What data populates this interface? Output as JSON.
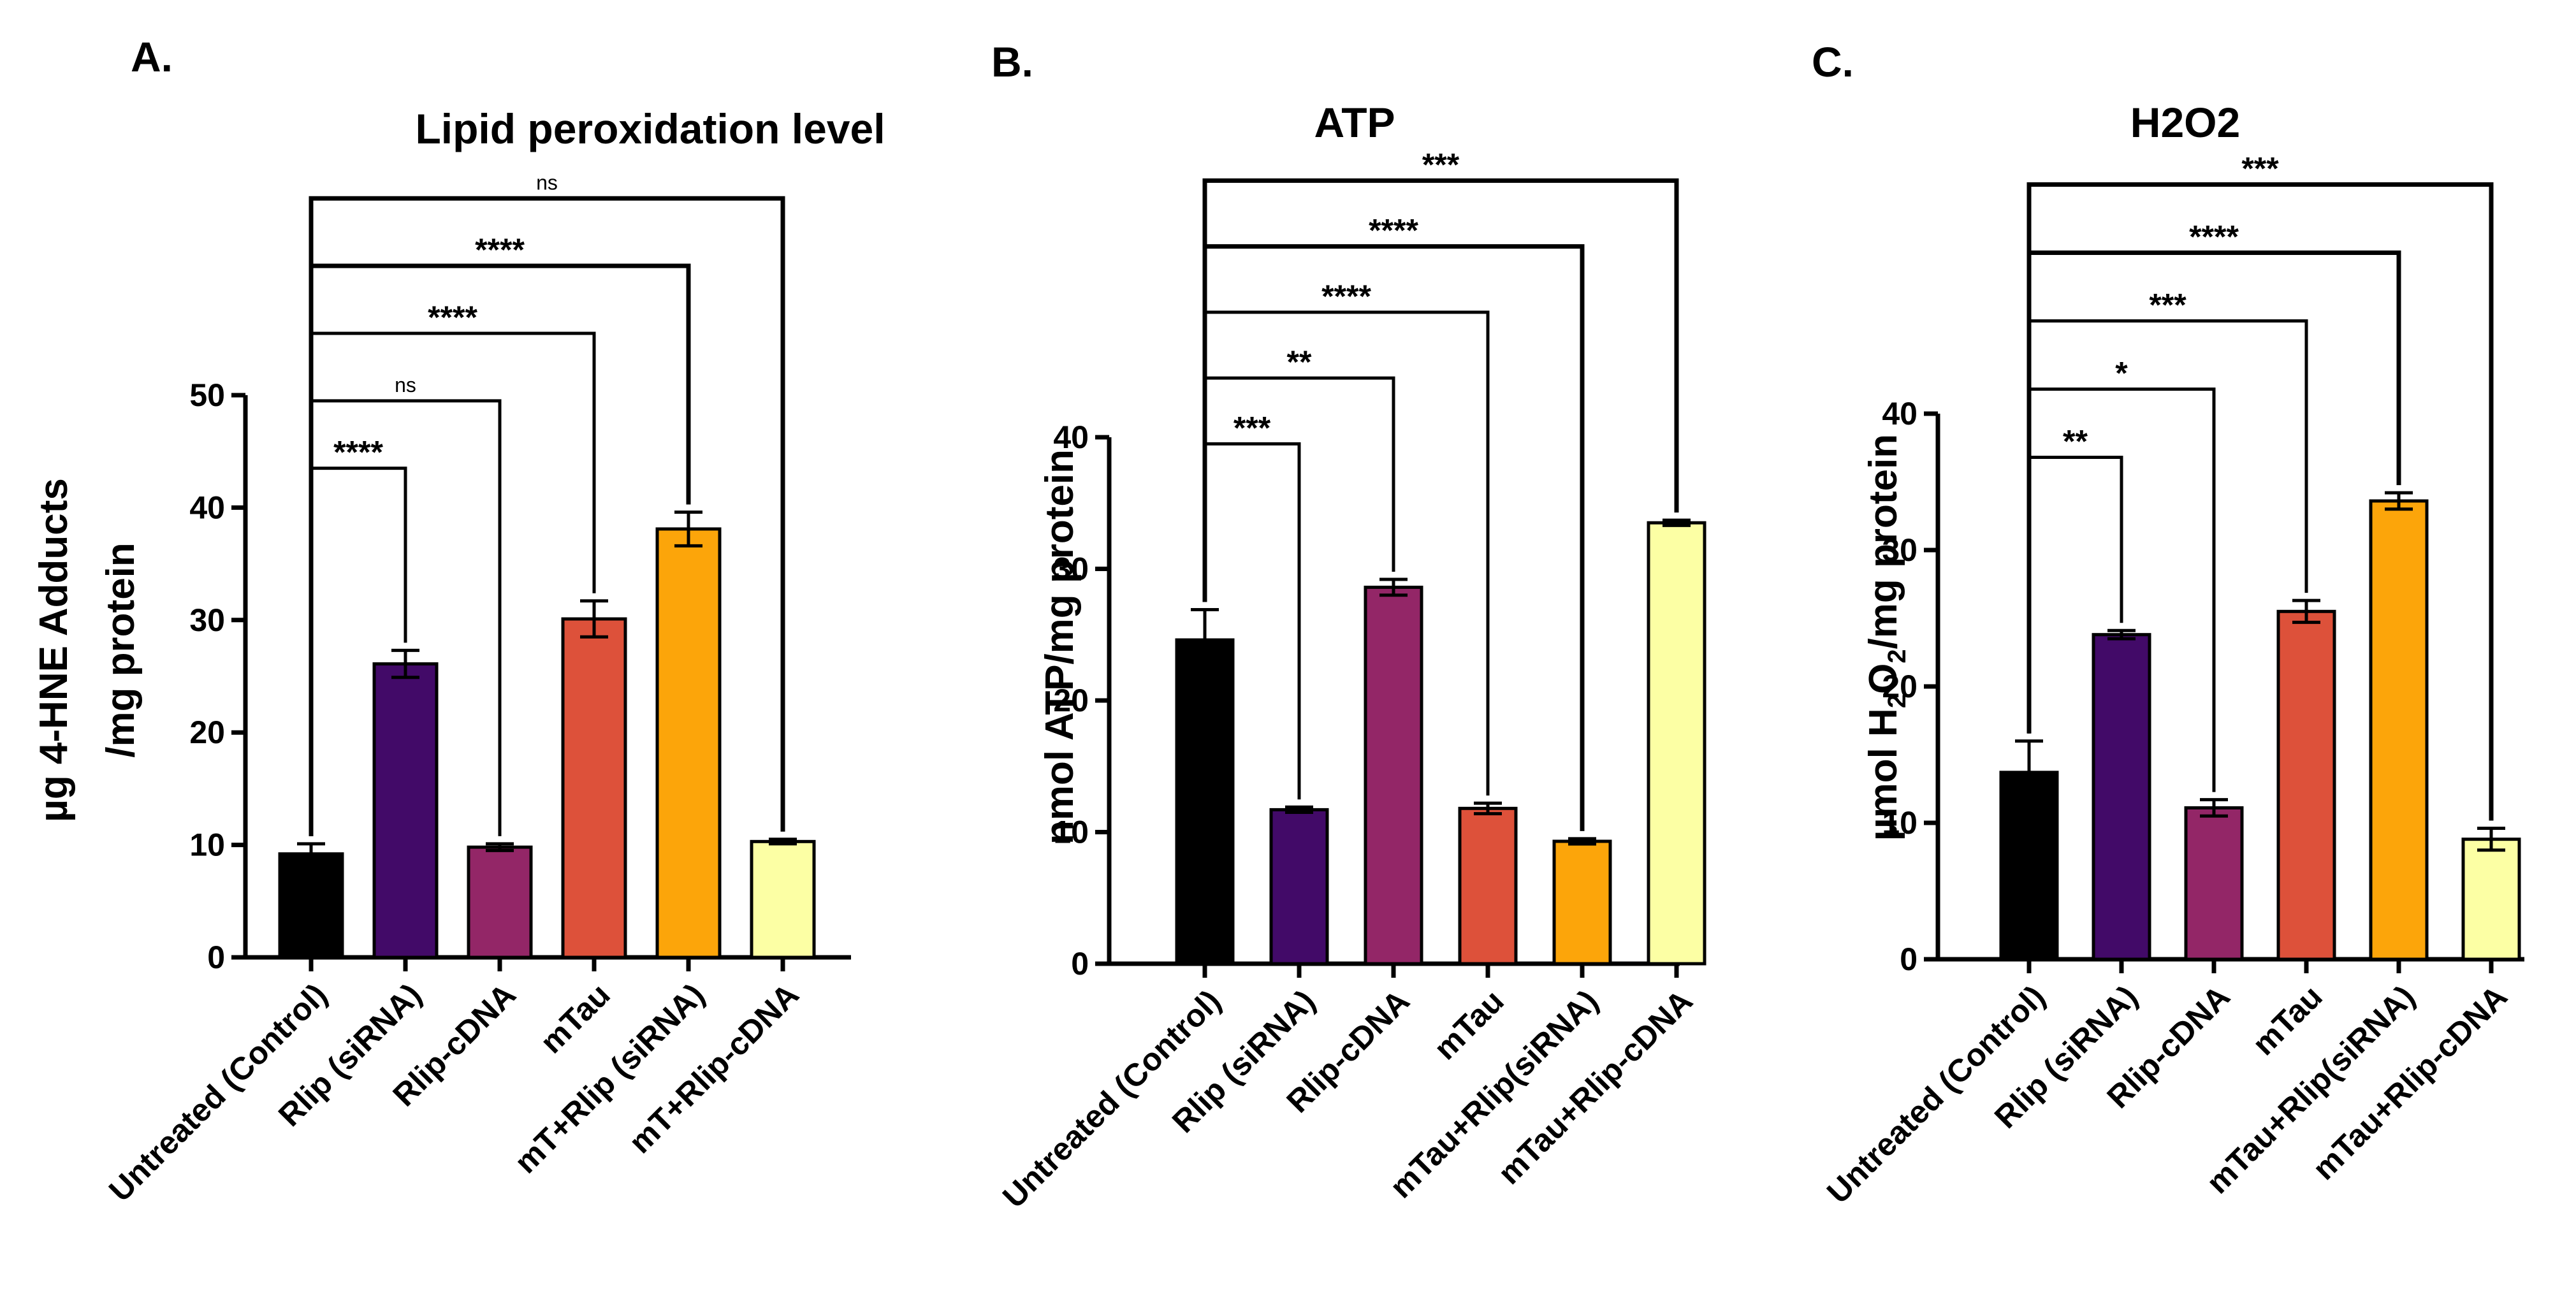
{
  "chart_data": [
    {
      "type": "bar",
      "panel": "A.",
      "title": "Lipid peroxidation level",
      "ylabel_lines": [
        "µg 4-HNE Adducts",
        "/mg protein"
      ],
      "ylim": [
        0,
        50
      ],
      "yticks": [
        0,
        10,
        20,
        30,
        40,
        50
      ],
      "categories": [
        "Untreated (Control)",
        "Rlip (siRNA)",
        "Rlip-cDNA",
        "mTau",
        "mT+Rlip (siRNA)",
        "mT+Rlip-cDNA"
      ],
      "values": [
        9.2,
        26.1,
        9.8,
        30.1,
        38.1,
        10.3
      ],
      "errors": [
        0.9,
        1.2,
        0.3,
        1.6,
        1.5,
        0.2
      ],
      "colors": [
        "#000000",
        "#420a68",
        "#932667",
        "#dd513a",
        "#fca50a",
        "#fcffa4"
      ],
      "comparisons": [
        {
          "label": "****",
          "target": 1,
          "y": 43.5
        },
        {
          "label": "ns",
          "target": 2,
          "y": 49.5
        },
        {
          "label": "****",
          "target": 3,
          "y": 55.5
        },
        {
          "label": "****",
          "target": 4,
          "y": 61.5
        },
        {
          "label": "ns",
          "target": 5,
          "y": 67.5
        }
      ]
    },
    {
      "type": "bar",
      "panel": "B.",
      "title": "ATP",
      "ylabel_lines": [
        "nmol ATP/mg protein"
      ],
      "ylim": [
        0,
        40
      ],
      "yticks": [
        0,
        10,
        20,
        30,
        40
      ],
      "categories": [
        "Untreated (Control)",
        "Rlip (siRNA)",
        "Rlip-cDNA",
        "mTau",
        "mTau+Rlip(siRNA)",
        "mTau+Rlip-cDNA"
      ],
      "values": [
        24.6,
        11.7,
        28.6,
        11.8,
        9.3,
        33.5
      ],
      "errors": [
        2.3,
        0.2,
        0.6,
        0.4,
        0.2,
        0.2
      ],
      "colors": [
        "#000000",
        "#420a68",
        "#932667",
        "#dd513a",
        "#fca50a",
        "#fcffa4"
      ],
      "comparisons": [
        {
          "label": "***",
          "target": 1,
          "y": 39.5
        },
        {
          "label": "**",
          "target": 2,
          "y": 44.5
        },
        {
          "label": "****",
          "target": 3,
          "y": 49.5
        },
        {
          "label": "****",
          "target": 4,
          "y": 54.5
        },
        {
          "label": "***",
          "target": 5,
          "y": 59.5
        }
      ]
    },
    {
      "type": "bar",
      "panel": "C.",
      "title": "H2O2",
      "ylabel_main": "µmol H",
      "ylabel_sub1": "2",
      "ylabel_mid": "O",
      "ylabel_sub2": "2",
      "ylabel_tail": "/mg protein",
      "ylim": [
        0,
        40
      ],
      "yticks": [
        0,
        10,
        20,
        30,
        40
      ],
      "categories": [
        "Untreated (Control)",
        "Rlip (siRNA)",
        "Rlip-cDNA",
        "mTau",
        "mTau+Rlip(siRNA)",
        "mTau+Rlip-cDNA"
      ],
      "values": [
        13.7,
        23.8,
        11.1,
        25.5,
        33.6,
        8.8
      ],
      "errors": [
        2.3,
        0.3,
        0.6,
        0.8,
        0.6,
        0.8
      ],
      "colors": [
        "#000000",
        "#420a68",
        "#932667",
        "#dd513a",
        "#fca50a",
        "#fcffa4"
      ],
      "comparisons": [
        {
          "label": "**",
          "target": 1,
          "y": 36.8
        },
        {
          "label": "*",
          "target": 2,
          "y": 41.8
        },
        {
          "label": "***",
          "target": 3,
          "y": 46.8
        },
        {
          "label": "****",
          "target": 4,
          "y": 51.8
        },
        {
          "label": "***",
          "target": 5,
          "y": 56.8
        }
      ]
    }
  ]
}
